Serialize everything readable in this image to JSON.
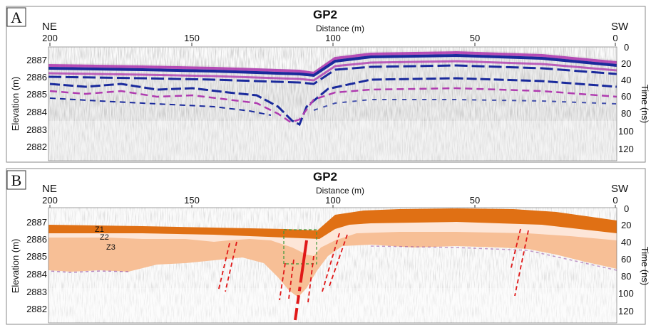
{
  "figure": {
    "panels": [
      {
        "label": "A",
        "title": "GP2",
        "left_direction": "NE",
        "right_direction": "SW",
        "x_axis_label": "Distance (m)",
        "x_ticks": [
          "200",
          "150",
          "100",
          "50",
          "0"
        ],
        "left_axis_label": "Elevation (m)",
        "left_ticks": [
          "2887",
          "2886",
          "2885",
          "2884",
          "2883",
          "2882"
        ],
        "right_axis_label": "Time (ns)",
        "right_ticks": [
          "0",
          "20",
          "40",
          "60",
          "80",
          "100",
          "120"
        ]
      },
      {
        "label": "B",
        "title": "GP2",
        "left_direction": "NE",
        "right_direction": "SW",
        "x_axis_label": "Distance (m)",
        "x_ticks": [
          "200",
          "150",
          "100",
          "50",
          "0"
        ],
        "left_axis_label": "Elevation (m)",
        "left_ticks": [
          "2887",
          "2886",
          "2885",
          "2884",
          "2883",
          "2882"
        ],
        "right_axis_label": "Time (ns)",
        "right_ticks": [
          "0",
          "20",
          "40",
          "60",
          "80",
          "100",
          "120"
        ],
        "zones": [
          "Z1",
          "Z2",
          "Z3"
        ]
      }
    ],
    "colors": {
      "zone1": "#e07014",
      "zone2": "#fde6d8",
      "zone3": "#f7bf96",
      "reflector_blue": "#1a2a9c",
      "reflector_magenta": "#b03cb0",
      "fault_red": "#e01818",
      "box_green": "#3a9a3a"
    }
  }
}
